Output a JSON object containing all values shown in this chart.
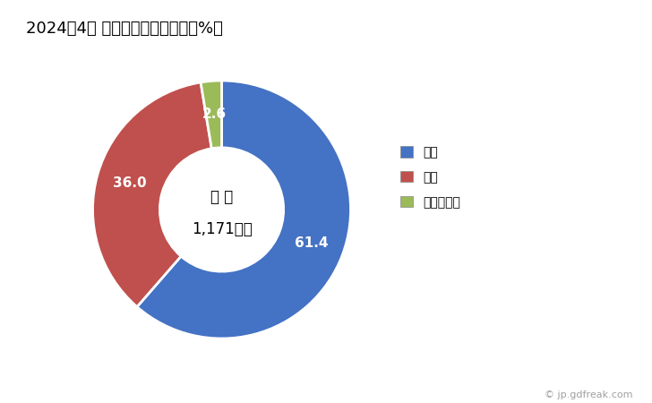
{
  "title": "2024年4月 輸出相手国のシェア（%）",
  "title_fontsize": 13,
  "labels": [
    "韓国",
    "米国",
    "フィリピン"
  ],
  "values": [
    61.4,
    36.0,
    2.6
  ],
  "colors": [
    "#4472C4",
    "#C0504D",
    "#9BBB59"
  ],
  "center_text_line1": "総 額",
  "center_text_line2": "1,171万円",
  "autopct_values": [
    "61.4",
    "36.0",
    "2.6"
  ],
  "watermark": "© jp.gdfreak.com",
  "background_color": "#FFFFFF"
}
